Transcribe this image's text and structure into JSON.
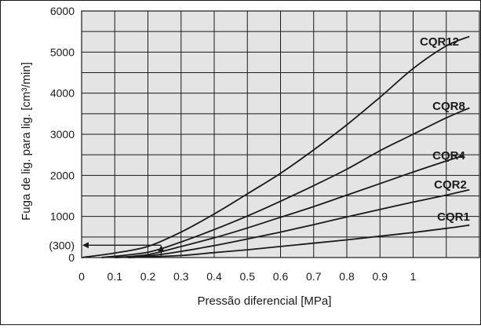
{
  "chart_data": {
    "type": "line",
    "title": "",
    "xlabel": "Pressão diferencial [MPa]",
    "ylabel": "Fuga de lig. para lig. [cm³/min]",
    "xlim": [
      0,
      1.2
    ],
    "ylim": [
      0,
      6000
    ],
    "x_ticks": [
      "0",
      "0.1",
      "0.2",
      "0.3",
      "0.4",
      "0.5",
      "0.6",
      "0.7",
      "0.8",
      "0.9",
      "1"
    ],
    "y_ticks": [
      "0",
      "1000",
      "2000",
      "3000",
      "4000",
      "5000",
      "6000"
    ],
    "extra_y_tick": {
      "label": "(300)",
      "value": 300
    },
    "grid": true,
    "background_color": "#e4e4e4",
    "line_color": "#1a1a1a",
    "series": [
      {
        "name": "CQR12",
        "x": [
          0,
          0.1,
          0.2,
          0.3,
          0.4,
          0.5,
          0.6,
          0.7,
          0.8,
          0.9,
          1.0,
          1.1,
          1.17
        ],
        "y": [
          0,
          110,
          270,
          620,
          1060,
          1550,
          2050,
          2620,
          3230,
          3900,
          4600,
          5150,
          5380
        ]
      },
      {
        "name": "CQR8",
        "x": [
          0.06,
          0.2,
          0.3,
          0.4,
          0.5,
          0.6,
          0.7,
          0.8,
          0.9,
          1.0,
          1.1,
          1.17
        ],
        "y": [
          0,
          130,
          380,
          680,
          1010,
          1370,
          1750,
          2150,
          2600,
          3000,
          3400,
          3640
        ]
      },
      {
        "name": "CQR4",
        "x": [
          0.1,
          0.2,
          0.3,
          0.4,
          0.5,
          0.6,
          0.7,
          0.8,
          0.9,
          1.0,
          1.1,
          1.15
        ],
        "y": [
          0,
          70,
          270,
          480,
          720,
          980,
          1240,
          1520,
          1800,
          2080,
          2350,
          2480
        ]
      },
      {
        "name": "CQR2",
        "x": [
          0.1,
          0.2,
          0.3,
          0.4,
          0.5,
          0.6,
          0.7,
          0.8,
          0.9,
          1.0,
          1.1,
          1.17
        ],
        "y": [
          0,
          40,
          150,
          290,
          450,
          620,
          800,
          990,
          1170,
          1350,
          1520,
          1650
        ]
      },
      {
        "name": "CQR1",
        "x": [
          0.14,
          0.3,
          0.4,
          0.5,
          0.6,
          0.7,
          0.8,
          0.9,
          1.0,
          1.1,
          1.17
        ],
        "y": [
          0,
          50,
          120,
          190,
          270,
          350,
          430,
          520,
          610,
          710,
          790
        ]
      }
    ],
    "annotation": {
      "x": 0.24,
      "y_start": 0,
      "y_end": 300
    }
  }
}
